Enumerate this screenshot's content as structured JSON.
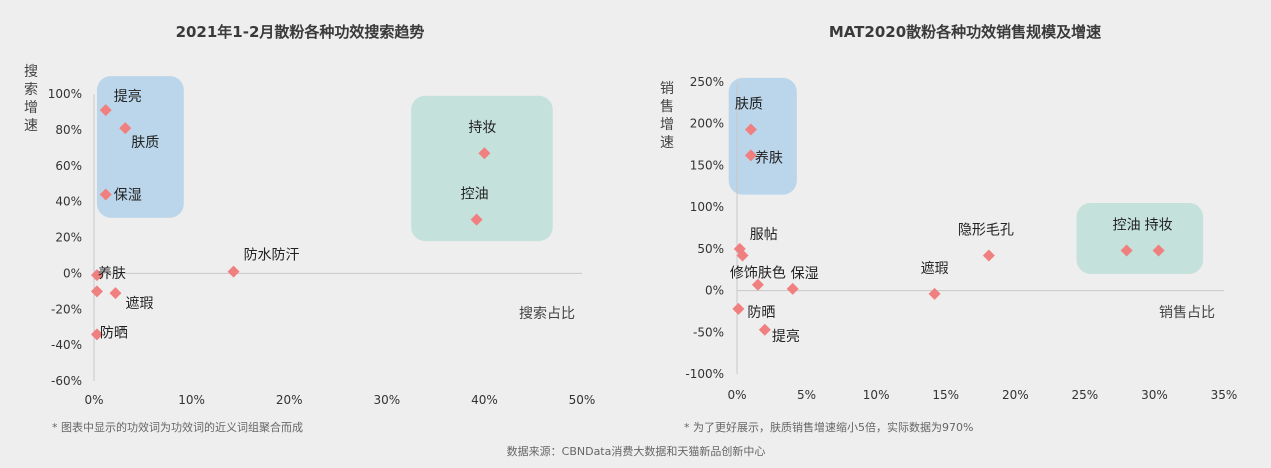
{
  "source_text": "数据来源：CBNData消费大数据和天猫新品创新中心",
  "accent_pink": "#f08080",
  "highlight_blue": "#aecfe8",
  "highlight_green": "#b9ddd6",
  "chart_data": [
    {
      "type": "scatter",
      "title": "2021年1-2月散粉各种功效搜索趋势",
      "xlabel": "搜索占比",
      "ylabel": "搜索增速",
      "xlim": [
        0,
        50
      ],
      "ylim": [
        -60,
        100
      ],
      "x_ticks": [
        "0%",
        "10%",
        "20%",
        "30%",
        "40%",
        "50%"
      ],
      "x_tick_values": [
        0,
        10,
        20,
        30,
        40,
        50
      ],
      "y_ticks": [
        "100%",
        "80%",
        "60%",
        "40%",
        "20%",
        "0%",
        "-20%",
        "-40%",
        "-60%"
      ],
      "y_tick_values": [
        100,
        80,
        60,
        40,
        20,
        0,
        -20,
        -40,
        -60
      ],
      "points": [
        {
          "label": "提亮",
          "x": 1.2,
          "y": 91
        },
        {
          "label": "肤质",
          "x": 3.2,
          "y": 81
        },
        {
          "label": "保湿",
          "x": 1.2,
          "y": 44
        },
        {
          "label": "持妆",
          "x": 40.0,
          "y": 67
        },
        {
          "label": "控油",
          "x": 39.2,
          "y": 30
        },
        {
          "label": "防水防汗",
          "x": 14.3,
          "y": 1
        },
        {
          "label": "养肤",
          "x": 0.3,
          "y": -1
        },
        {
          "label": "遮瑕",
          "x": 2.2,
          "y": -11
        },
        {
          "label": "",
          "x": 0.3,
          "y": -10
        },
        {
          "label": "防晒",
          "x": 0.3,
          "y": -34
        }
      ],
      "groups": [
        {
          "color": "blue",
          "x0": 0.3,
          "x1": 9.2,
          "y0": 31,
          "y1": 110
        },
        {
          "color": "green",
          "x0": 32.5,
          "x1": 47.0,
          "y0": 18,
          "y1": 99
        }
      ],
      "note": "* 图表中显示的功效词为功效词的近义词组聚合而成"
    },
    {
      "type": "scatter",
      "title": "MAT2020散粉各种功效销售规模及增速",
      "xlabel": "销售占比",
      "ylabel": "销售增速",
      "xlim": [
        0,
        35
      ],
      "ylim": [
        -100,
        250
      ],
      "x_ticks": [
        "0%",
        "5%",
        "10%",
        "15%",
        "20%",
        "25%",
        "30%",
        "35%"
      ],
      "x_tick_values": [
        0,
        5,
        10,
        15,
        20,
        25,
        30,
        35
      ],
      "y_ticks": [
        "250%",
        "200%",
        "150%",
        "100%",
        "50%",
        "0%",
        "-50%",
        "-100%"
      ],
      "y_tick_values": [
        250,
        200,
        150,
        100,
        50,
        0,
        -50,
        -100
      ],
      "points": [
        {
          "label": "肤质",
          "x": 1.0,
          "y": 193
        },
        {
          "label": "养肤",
          "x": 1.0,
          "y": 162
        },
        {
          "label": "服帖",
          "x": 0.2,
          "y": 50
        },
        {
          "label": "",
          "x": 0.4,
          "y": 42
        },
        {
          "label": "修饰肤色",
          "x": 1.5,
          "y": 7
        },
        {
          "label": "保湿",
          "x": 4.0,
          "y": 2
        },
        {
          "label": "遮瑕",
          "x": 14.2,
          "y": -4
        },
        {
          "label": "隐形毛孔",
          "x": 18.1,
          "y": 42
        },
        {
          "label": "控油",
          "x": 28.0,
          "y": 48
        },
        {
          "label": "持妆",
          "x": 30.3,
          "y": 48
        },
        {
          "label": "防晒",
          "x": 0.1,
          "y": -22
        },
        {
          "label": "提亮",
          "x": 2.0,
          "y": -47
        }
      ],
      "groups": [
        {
          "color": "blue",
          "x0": -0.6,
          "x1": 4.3,
          "y0": 115,
          "y1": 255
        },
        {
          "color": "green",
          "x0": 24.4,
          "x1": 33.5,
          "y0": 20,
          "y1": 105
        }
      ],
      "note": "* 为了更好展示，肤质销售增速缩小5倍，实际数据为970%"
    }
  ]
}
